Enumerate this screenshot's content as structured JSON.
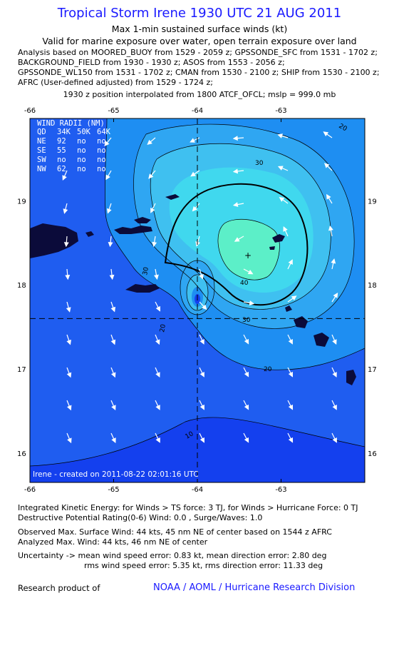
{
  "header": {
    "title": "Tropical Storm Irene 1930 UTC 21 AUG 2011",
    "subtitle1": "Max 1-min sustained surface winds (kt)",
    "subtitle2": "Valid for marine exposure over water, open terrain exposure over land",
    "analysis_lines": [
      "Analysis based on MOORED_BUOY from 1529 - 2059 z; GPSSONDE_SFC from 1531 - 1702 z;",
      "BACKGROUND_FIELD from 1930 - 1930 z; ASOS from 1553 - 2056 z;",
      "GPSSONDE_WL150 from 1531 - 1702 z; CMAN from 1530 - 2100 z; SHIP from 1530 - 2100 z;",
      "AFRC (User-defined adjusted) from 1529 - 1724 z;"
    ],
    "position_note": "1930 z position interpolated from 1800 ATCF_OFCL; mslp = 999.0 mb"
  },
  "map": {
    "lon_ticks": [
      "-66",
      "-65",
      "-64",
      "-63"
    ],
    "lat_ticks": [
      "19",
      "18",
      "17",
      "16"
    ],
    "lon_values": [
      -66,
      -65,
      -64,
      -63
    ],
    "lat_values": [
      19,
      18,
      17,
      16
    ],
    "center": {
      "lon": -64.0,
      "lat": 17.6
    },
    "contour_labels": [
      "10",
      "20",
      "20",
      "20",
      "30",
      "30",
      "30",
      "40"
    ],
    "wind_radii": {
      "title": "WIND RADII (NM)",
      "headers": [
        "QD",
        "34K",
        "50K",
        "64K"
      ],
      "rows": [
        [
          "NE",
          "92",
          "no",
          "no"
        ],
        [
          "SE",
          "55",
          "no",
          "no"
        ],
        [
          "SW",
          "no",
          "no",
          "no"
        ],
        [
          "NW",
          "62",
          "no",
          "no"
        ]
      ]
    },
    "credit": "Irene - created on 2011-08-22 02:01:16 UTC",
    "colors": {
      "background": "#1f5df0",
      "outer": "#1440ee",
      "level20": "#1e8ef2",
      "level25": "#2fa6f2",
      "level30": "#3fc0f0",
      "level35": "#40d8ee",
      "level40": "#5cefc8",
      "land": "#0b0b3a"
    }
  },
  "stats": {
    "ike": "Integrated Kinetic Energy:  for Winds > TS force: 3 TJ,  for Winds > Hurricane Force: 0 TJ",
    "dpr": "Destructive Potential Rating(0-6)   Wind: 0.0 , Surge/Waves: 1.0",
    "obs_max": "Observed Max. Surface Wind: 44 kts, 45 nm NE of center based on 1544 z AFRC",
    "ana_max": "Analyzed Max. Wind: 44 kts, 46 nm NE of center",
    "uncert1": "Uncertainty -> mean wind speed error: 0.83 kt,   mean direction error: 2.80 deg",
    "uncert2": "rms wind speed error: 5.35 kt,   rms direction error: 11.33 deg"
  },
  "footer": {
    "left": "Research product of",
    "right": "NOAA / AOML / Hurricane Research Division"
  }
}
